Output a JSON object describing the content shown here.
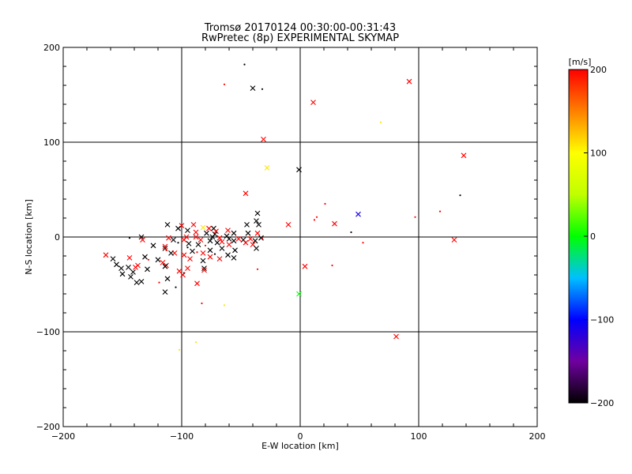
{
  "chart_data": {
    "type": "scatter",
    "title": "Tromsø 20170124 00:30:00-00:31:43",
    "subtitle": "RwPretec (8p) EXPERIMENTAL SKYMAP",
    "xlabel": "E-W location [km]",
    "ylabel": "N-S location [km]",
    "xlim": [
      -200,
      200
    ],
    "ylim": [
      -200,
      200
    ],
    "xticks": [
      -200,
      -100,
      0,
      100,
      200
    ],
    "yticks": [
      -200,
      -100,
      0,
      100,
      200
    ],
    "xtick_labels": [
      "−200",
      "−100",
      "0",
      "100",
      "200"
    ],
    "ytick_labels": [
      "−200",
      "−100",
      "0",
      "100",
      "200"
    ],
    "grid": true,
    "colorbar": {
      "label": "[m/s]",
      "min": -200,
      "max": 200,
      "ticks": [
        200,
        100,
        0,
        -100,
        -200
      ],
      "tick_labels": [
        "200",
        "100",
        "0",
        "−100",
        "−200"
      ],
      "colors": [
        "#000000",
        "#7000a0",
        "#0000ff",
        "#00c0ff",
        "#00ff00",
        "#c0ff00",
        "#ffff00",
        "#ff8000",
        "#ff0000"
      ]
    },
    "points": [
      {
        "x": -47,
        "y": 182,
        "v": -200,
        "m": "dot"
      },
      {
        "x": -40,
        "y": 157,
        "v": -200,
        "m": "x"
      },
      {
        "x": -32,
        "y": 156,
        "v": -200,
        "m": "dot"
      },
      {
        "x": -64,
        "y": 161,
        "v": 200,
        "m": "dot"
      },
      {
        "x": 11,
        "y": 142,
        "v": 200,
        "m": "x"
      },
      {
        "x": 92,
        "y": 164,
        "v": 200,
        "m": "x"
      },
      {
        "x": 68,
        "y": 121,
        "v": 110,
        "m": "dot"
      },
      {
        "x": -31,
        "y": 103,
        "v": 200,
        "m": "x"
      },
      {
        "x": -28,
        "y": 73,
        "v": 110,
        "m": "x"
      },
      {
        "x": -1,
        "y": 71,
        "v": -200,
        "m": "x"
      },
      {
        "x": 138,
        "y": 86,
        "v": 200,
        "m": "x"
      },
      {
        "x": -46,
        "y": 46,
        "v": 200,
        "m": "x"
      },
      {
        "x": 135,
        "y": 44,
        "v": -200,
        "m": "dot"
      },
      {
        "x": 21,
        "y": 35,
        "v": 200,
        "m": "dot"
      },
      {
        "x": 118,
        "y": 27,
        "v": 200,
        "m": "dot"
      },
      {
        "x": 49,
        "y": 24,
        "v": -110,
        "m": "x"
      },
      {
        "x": -36,
        "y": 25,
        "v": -200,
        "m": "x"
      },
      {
        "x": 14,
        "y": 21,
        "v": 200,
        "m": "dot"
      },
      {
        "x": 97,
        "y": 21,
        "v": 200,
        "m": "dot"
      },
      {
        "x": 12,
        "y": 18,
        "v": 200,
        "m": "dot"
      },
      {
        "x": -37,
        "y": 17,
        "v": -200,
        "m": "x"
      },
      {
        "x": -10,
        "y": 13,
        "v": 200,
        "m": "x"
      },
      {
        "x": 29,
        "y": 14,
        "v": 200,
        "m": "x"
      },
      {
        "x": -35,
        "y": 13,
        "v": -200,
        "m": "x"
      },
      {
        "x": -112,
        "y": 13,
        "v": -200,
        "m": "x"
      },
      {
        "x": -100,
        "y": 12,
        "v": 200,
        "m": "x"
      },
      {
        "x": -45,
        "y": 13,
        "v": -200,
        "m": "x"
      },
      {
        "x": -82,
        "y": 10,
        "v": 110,
        "m": "x"
      },
      {
        "x": -90,
        "y": 13,
        "v": 200,
        "m": "x"
      },
      {
        "x": -77,
        "y": 9,
        "v": 200,
        "m": "x"
      },
      {
        "x": -73,
        "y": 9,
        "v": -200,
        "m": "x"
      },
      {
        "x": -103,
        "y": 9,
        "v": -200,
        "m": "x"
      },
      {
        "x": -95,
        "y": 7,
        "v": -200,
        "m": "x"
      },
      {
        "x": -61,
        "y": 7,
        "v": 200,
        "m": "x"
      },
      {
        "x": -71,
        "y": 6,
        "v": 200,
        "m": "x"
      },
      {
        "x": -88,
        "y": 5,
        "v": 200,
        "m": "x"
      },
      {
        "x": -56,
        "y": 4,
        "v": -200,
        "m": "x"
      },
      {
        "x": -79,
        "y": 4,
        "v": -200,
        "m": "x"
      },
      {
        "x": -72,
        "y": 3,
        "v": -200,
        "m": "x"
      },
      {
        "x": -44,
        "y": 4,
        "v": -200,
        "m": "x"
      },
      {
        "x": -36,
        "y": 4,
        "v": 200,
        "m": "x"
      },
      {
        "x": 43,
        "y": 5,
        "v": -200,
        "m": "dot"
      },
      {
        "x": -62,
        "y": 1,
        "v": -200,
        "m": "x"
      },
      {
        "x": -74,
        "y": 0,
        "v": -200,
        "m": "x"
      },
      {
        "x": -96,
        "y": 0,
        "v": 200,
        "m": "x"
      },
      {
        "x": -88,
        "y": 0,
        "v": 200,
        "m": "x"
      },
      {
        "x": -68,
        "y": -1,
        "v": 200,
        "m": "x"
      },
      {
        "x": -134,
        "y": 0,
        "v": -200,
        "m": "x"
      },
      {
        "x": -144,
        "y": -1,
        "v": -200,
        "m": "dot"
      },
      {
        "x": -111,
        "y": -1,
        "v": 200,
        "m": "x"
      },
      {
        "x": -33,
        "y": -1,
        "v": -200,
        "m": "x"
      },
      {
        "x": -32,
        "y": -1,
        "v": 200,
        "m": "dot"
      },
      {
        "x": -60,
        "y": -2,
        "v": -200,
        "m": "x"
      },
      {
        "x": -52,
        "y": -2,
        "v": 200,
        "m": "x"
      },
      {
        "x": -42,
        "y": -2,
        "v": 200,
        "m": "x"
      },
      {
        "x": -48,
        "y": -3,
        "v": -200,
        "m": "x"
      },
      {
        "x": -107,
        "y": -3,
        "v": -200,
        "m": "x"
      },
      {
        "x": -84,
        "y": -3,
        "v": 200,
        "m": "x"
      },
      {
        "x": -98,
        "y": -3,
        "v": 200,
        "m": "x"
      },
      {
        "x": -133,
        "y": -3,
        "v": 200,
        "m": "x"
      },
      {
        "x": -76,
        "y": -4,
        "v": -200,
        "m": "x"
      },
      {
        "x": -56,
        "y": -4,
        "v": -200,
        "m": "x"
      },
      {
        "x": -38,
        "y": -4,
        "v": -200,
        "m": "x"
      },
      {
        "x": 130,
        "y": -3,
        "v": 200,
        "m": "x"
      },
      {
        "x": -66,
        "y": -5,
        "v": 200,
        "m": "x"
      },
      {
        "x": -103,
        "y": -6,
        "v": -200,
        "m": "dot"
      },
      {
        "x": -70,
        "y": -6,
        "v": -200,
        "m": "x"
      },
      {
        "x": -46,
        "y": -6,
        "v": 200,
        "m": "x"
      },
      {
        "x": 53,
        "y": -6,
        "v": 200,
        "m": "dot"
      },
      {
        "x": -94,
        "y": -7,
        "v": -200,
        "m": "x"
      },
      {
        "x": -40,
        "y": -8,
        "v": 200,
        "m": "x"
      },
      {
        "x": -60,
        "y": -8,
        "v": 200,
        "m": "x"
      },
      {
        "x": -86,
        "y": -8,
        "v": -200,
        "m": "x"
      },
      {
        "x": -124,
        "y": -9,
        "v": -200,
        "m": "x"
      },
      {
        "x": -80,
        "y": -9,
        "v": 200,
        "m": "dot"
      },
      {
        "x": -114,
        "y": -12,
        "v": -200,
        "m": "x"
      },
      {
        "x": -114,
        "y": -10,
        "v": 200,
        "m": "x"
      },
      {
        "x": -37,
        "y": -12,
        "v": -200,
        "m": "x"
      },
      {
        "x": -66,
        "y": -12,
        "v": -200,
        "m": "x"
      },
      {
        "x": -95,
        "y": -11,
        "v": -200,
        "m": "dot"
      },
      {
        "x": -113,
        "y": -14,
        "v": 200,
        "m": "dot"
      },
      {
        "x": -55,
        "y": -14,
        "v": -200,
        "m": "x"
      },
      {
        "x": -76,
        "y": -14,
        "v": -200,
        "m": "x"
      },
      {
        "x": -91,
        "y": -15,
        "v": -200,
        "m": "x"
      },
      {
        "x": -87,
        "y": -16,
        "v": 200,
        "m": "dot"
      },
      {
        "x": -82,
        "y": -17,
        "v": 200,
        "m": "x"
      },
      {
        "x": -106,
        "y": -17,
        "v": 200,
        "m": "x"
      },
      {
        "x": -109,
        "y": -17,
        "v": -200,
        "m": "x"
      },
      {
        "x": -72,
        "y": -18,
        "v": -200,
        "m": "dot"
      },
      {
        "x": -164,
        "y": -19,
        "v": 200,
        "m": "x"
      },
      {
        "x": -98,
        "y": -19,
        "v": 200,
        "m": "x"
      },
      {
        "x": -61,
        "y": -19,
        "v": -200,
        "m": "x"
      },
      {
        "x": -131,
        "y": -21,
        "v": -200,
        "m": "x"
      },
      {
        "x": -76,
        "y": -21,
        "v": 200,
        "m": "x"
      },
      {
        "x": -144,
        "y": -22,
        "v": 200,
        "m": "x"
      },
      {
        "x": -56,
        "y": -22,
        "v": -200,
        "m": "x"
      },
      {
        "x": -158,
        "y": -23,
        "v": -200,
        "m": "x"
      },
      {
        "x": -93,
        "y": -23,
        "v": 200,
        "m": "x"
      },
      {
        "x": -68,
        "y": -23,
        "v": 200,
        "m": "x"
      },
      {
        "x": -120,
        "y": -24,
        "v": -200,
        "m": "x"
      },
      {
        "x": -128,
        "y": -24,
        "v": 200,
        "m": "dot"
      },
      {
        "x": -82,
        "y": -25,
        "v": -200,
        "m": "x"
      },
      {
        "x": -116,
        "y": -27,
        "v": 200,
        "m": "x"
      },
      {
        "x": -155,
        "y": -29,
        "v": -200,
        "m": "x"
      },
      {
        "x": -137,
        "y": -30,
        "v": 200,
        "m": "x"
      },
      {
        "x": -113,
        "y": -30,
        "v": 200,
        "m": "x"
      },
      {
        "x": 27,
        "y": -30,
        "v": 200,
        "m": "dot"
      },
      {
        "x": -114,
        "y": -31,
        "v": -200,
        "m": "x"
      },
      {
        "x": -145,
        "y": -32,
        "v": -200,
        "m": "x"
      },
      {
        "x": -139,
        "y": -32,
        "v": 200,
        "m": "x"
      },
      {
        "x": 4,
        "y": -31,
        "v": 200,
        "m": "x"
      },
      {
        "x": -151,
        "y": -33,
        "v": -200,
        "m": "x"
      },
      {
        "x": -81,
        "y": -33,
        "v": -200,
        "m": "x"
      },
      {
        "x": -95,
        "y": -33,
        "v": 200,
        "m": "x"
      },
      {
        "x": -129,
        "y": -34,
        "v": -200,
        "m": "x"
      },
      {
        "x": -36,
        "y": -34,
        "v": 200,
        "m": "dot"
      },
      {
        "x": -81,
        "y": -35,
        "v": 200,
        "m": "x"
      },
      {
        "x": -102,
        "y": -36,
        "v": 200,
        "m": "x"
      },
      {
        "x": -141,
        "y": -37,
        "v": -200,
        "m": "x"
      },
      {
        "x": -98,
        "y": -38,
        "v": -200,
        "m": "dot"
      },
      {
        "x": -150,
        "y": -39,
        "v": -200,
        "m": "x"
      },
      {
        "x": -99,
        "y": -40,
        "v": 200,
        "m": "x"
      },
      {
        "x": -143,
        "y": -42,
        "v": -200,
        "m": "x"
      },
      {
        "x": -112,
        "y": -44,
        "v": -200,
        "m": "x"
      },
      {
        "x": -134,
        "y": -47,
        "v": -200,
        "m": "x"
      },
      {
        "x": -138,
        "y": -48,
        "v": -200,
        "m": "x"
      },
      {
        "x": -119,
        "y": -48,
        "v": 200,
        "m": "dot"
      },
      {
        "x": -87,
        "y": -49,
        "v": 200,
        "m": "x"
      },
      {
        "x": -105,
        "y": -53,
        "v": -200,
        "m": "dot"
      },
      {
        "x": -114,
        "y": -58,
        "v": -200,
        "m": "x"
      },
      {
        "x": -1,
        "y": -60,
        "v": 0,
        "m": "x"
      },
      {
        "x": -83,
        "y": -70,
        "v": 200,
        "m": "dot"
      },
      {
        "x": -64,
        "y": -72,
        "v": 110,
        "m": "dot"
      },
      {
        "x": 81,
        "y": -105,
        "v": 200,
        "m": "x"
      },
      {
        "x": -88,
        "y": -111,
        "v": 110,
        "m": "dot"
      },
      {
        "x": -102,
        "y": -119,
        "v": 110,
        "m": "dot"
      }
    ]
  }
}
